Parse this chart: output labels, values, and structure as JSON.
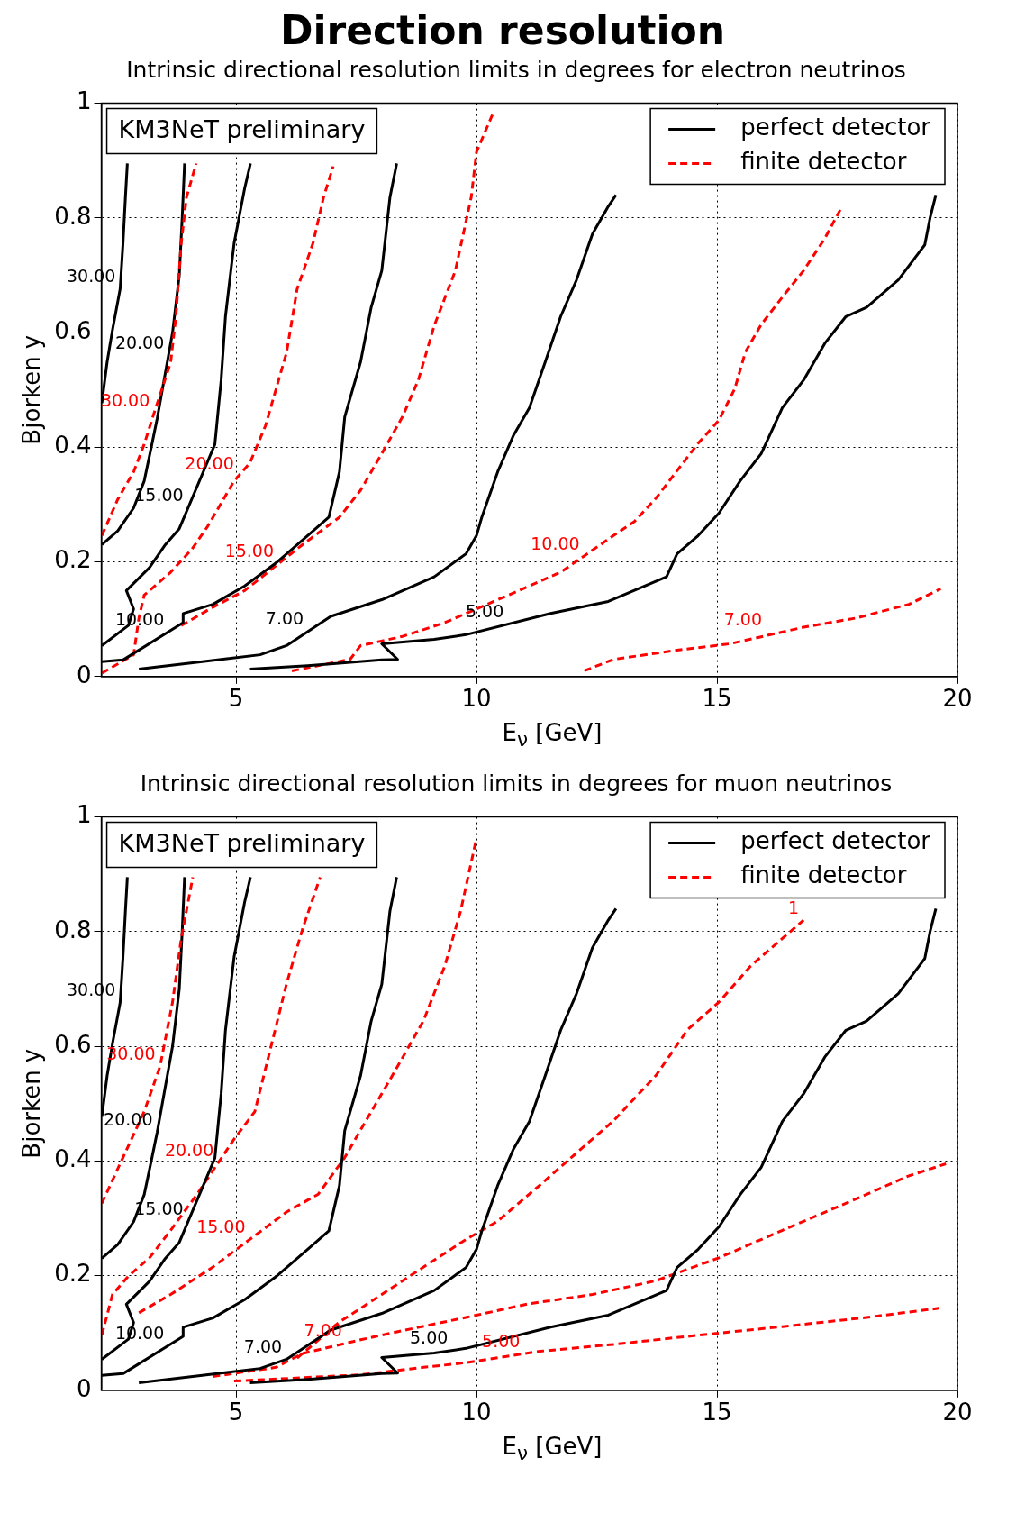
{
  "chart_data": [
    {
      "type": "line",
      "title": "Direction resolution",
      "subtitle": "Intrinsic directional resolution limits in degrees for electron neutrinos",
      "xlabel": "E$_{ν}$ [GeV]",
      "ylabel": "Bjorken y",
      "xlim": [
        2.2,
        20
      ],
      "ylim": [
        0,
        1
      ],
      "xticks": [
        5,
        10,
        15,
        20
      ],
      "yticks": [
        0,
        0.2,
        0.4,
        0.6,
        0.8,
        1
      ],
      "grid": true,
      "legend": "top right",
      "annotations": [
        "KM3NeT preliminary",
        {
          "text": "30.00",
          "x": 2.59,
          "y": 0.676
        },
        {
          "text": "20.00",
          "x": 3.6,
          "y": 0.56
        },
        {
          "text": "15.00",
          "x": 4.0,
          "y": 0.294
        },
        {
          "text": "10.00",
          "x": 3.6,
          "y": 0.078
        },
        {
          "text": "7.00",
          "x": 6.5,
          "y": 0.079
        },
        {
          "text": "5.00",
          "x": 10.66,
          "y": 0.092
        },
        {
          "text": "30.00",
          "x": 3.3,
          "y": 0.46
        },
        {
          "text": "20.00",
          "x": 5.05,
          "y": 0.35
        },
        {
          "text": "15.00",
          "x": 5.88,
          "y": 0.197
        },
        {
          "text": "10.00",
          "x": 12.24,
          "y": 0.21
        },
        {
          "text": "7.00",
          "x": 16.03,
          "y": 0.078
        }
      ],
      "series": [
        {
          "name": "perfect detector",
          "color": "#000000",
          "line_style": "solid",
          "x": [
            2.21,
            2.32,
            2.43,
            2.59,
            2.65,
            2.7,
            2.74
          ],
          "values": [
            0.477,
            0.549,
            0.604,
            0.676,
            0.756,
            0.836,
            0.895
          ]
        },
        {
          "name": "finite detector",
          "color": "#ff0000",
          "line_style": "dashed",
          "x": [
            2.21,
            2.54,
            2.87,
            3.09,
            3.27,
            3.64,
            3.75,
            3.86,
            3.97,
            4.17
          ],
          "values": [
            0.246,
            0.309,
            0.357,
            0.405,
            0.453,
            0.548,
            0.628,
            0.756,
            0.836,
            0.895
          ]
        },
        {
          "color": "#000000",
          "line_style": "solid",
          "x": [
            2.21,
            2.54,
            2.87,
            3.09,
            3.25,
            3.36,
            3.68,
            3.82,
            3.88,
            3.93
          ],
          "values": [
            0.23,
            0.254,
            0.294,
            0.341,
            0.405,
            0.45,
            0.6,
            0.7,
            0.8,
            0.895
          ]
        },
        {
          "color": "#000000",
          "line_style": "solid",
          "x": [
            2.21,
            2.76,
            2.87,
            2.72,
            3.2,
            3.53,
            3.82,
            4.56,
            4.69,
            4.78,
            4.96,
            5.18,
            5.3
          ],
          "values": [
            0.054,
            0.089,
            0.118,
            0.15,
            0.19,
            0.23,
            0.258,
            0.405,
            0.517,
            0.628,
            0.756,
            0.852,
            0.895
          ]
        },
        {
          "color": "#000000",
          "line_style": "solid",
          "x": [
            2.21,
            2.65,
            3.9,
            3.9,
            4.52,
            5.18,
            5.83,
            6.49,
            6.93,
            7.15,
            7.26,
            7.59,
            7.81,
            8.03,
            8.2,
            8.34
          ],
          "values": [
            0.026,
            0.029,
            0.094,
            0.11,
            0.126,
            0.158,
            0.198,
            0.246,
            0.278,
            0.357,
            0.453,
            0.549,
            0.644,
            0.708,
            0.836,
            0.895
          ]
        },
        {
          "color": "#000000",
          "line_style": "solid",
          "x": [
            2.98,
            4.3,
            5.5,
            6.05,
            6.97,
            8.03,
            9.12,
            9.78,
            10.0,
            10.11,
            10.44,
            10.77,
            11.1,
            11.43,
            11.75,
            12.08,
            12.41,
            12.74,
            12.9
          ],
          "values": [
            0.013,
            0.026,
            0.038,
            0.054,
            0.105,
            0.134,
            0.174,
            0.214,
            0.246,
            0.278,
            0.357,
            0.421,
            0.469,
            0.549,
            0.628,
            0.692,
            0.772,
            0.82,
            0.84
          ]
        },
        {
          "color": "#000000",
          "line_style": "solid",
          "x": [
            5.29,
            6.49,
            8.03,
            8.36,
            8.03,
            9.12,
            9.78,
            11.54,
            12.74,
            13.95,
            14.17,
            14.61,
            15.04,
            15.48,
            15.92,
            16.36,
            16.8,
            17.24,
            17.68,
            18.11,
            18.77,
            19.32,
            19.43,
            19.55
          ],
          "values": [
            0.013,
            0.019,
            0.029,
            0.03,
            0.057,
            0.065,
            0.073,
            0.11,
            0.131,
            0.174,
            0.214,
            0.246,
            0.285,
            0.341,
            0.389,
            0.469,
            0.517,
            0.581,
            0.628,
            0.644,
            0.692,
            0.753,
            0.8,
            0.84
          ]
        },
        {
          "color": "#ff0000",
          "line_style": "dashed",
          "x": [
            2.21,
            2.87,
            2.98,
            3.09,
            3.64,
            4.08,
            4.41,
            4.96,
            5.29,
            5.61,
            5.83,
            6.05,
            6.27,
            6.6,
            6.82,
            7.02
          ],
          "values": [
            0.006,
            0.038,
            0.102,
            0.142,
            0.182,
            0.222,
            0.262,
            0.341,
            0.373,
            0.437,
            0.501,
            0.565,
            0.676,
            0.756,
            0.836,
            0.89
          ]
        },
        {
          "color": "#ff0000",
          "line_style": "dashed",
          "x": [
            3.86,
            4.52,
            5.18,
            6.38,
            7.15,
            7.59,
            8.03,
            8.46,
            8.79,
            9.12,
            9.56,
            9.89,
            10.0,
            10.33
          ],
          "values": [
            0.089,
            0.121,
            0.15,
            0.23,
            0.278,
            0.325,
            0.389,
            0.453,
            0.517,
            0.612,
            0.708,
            0.836,
            0.915,
            0.98
          ]
        },
        {
          "color": "#ff0000",
          "line_style": "dashed",
          "x": [
            6.16,
            7.37,
            7.59,
            8.46,
            9.34,
            10.22,
            11.1,
            11.75,
            12.85,
            13.29,
            13.73,
            14.17,
            14.61,
            15.04,
            15.37,
            15.59,
            15.92,
            16.36,
            16.8,
            17.24,
            17.6
          ],
          "values": [
            0.01,
            0.03,
            0.054,
            0.07,
            0.094,
            0.126,
            0.158,
            0.182,
            0.246,
            0.271,
            0.311,
            0.359,
            0.407,
            0.447,
            0.502,
            0.566,
            0.614,
            0.662,
            0.708,
            0.764,
            0.82
          ]
        },
        {
          "color": "#ff0000",
          "line_style": "dashed",
          "x": [
            12.24,
            12.85,
            14.17,
            15.26,
            16.8,
            17.89,
            18.99,
            19.65
          ],
          "values": [
            0.01,
            0.03,
            0.046,
            0.057,
            0.086,
            0.102,
            0.126,
            0.153
          ]
        }
      ]
    },
    {
      "type": "line",
      "subtitle": "Intrinsic directional resolution limits in degrees for muon neutrinos",
      "xlabel": "E$_{ν}$ [GeV]",
      "ylabel": "Bjorken y",
      "xlim": [
        2.2,
        20
      ],
      "ylim": [
        0,
        1
      ],
      "xticks": [
        5,
        10,
        15,
        20
      ],
      "yticks": [
        0,
        0.2,
        0.4,
        0.6,
        0.8,
        1
      ],
      "grid": true,
      "legend": "top right",
      "annotations": [
        "KM3NeT preliminary",
        {
          "text": "30.00",
          "x": 2.59,
          "y": 0.676
        },
        {
          "text": "20.00",
          "x": 3.36,
          "y": 0.45
        },
        {
          "text": "15.00",
          "x": 4.0,
          "y": 0.294
        },
        {
          "text": "10.00",
          "x": 3.6,
          "y": 0.078
        },
        {
          "text": "7.00",
          "x": 6.05,
          "y": 0.054
        },
        {
          "text": "5.00",
          "x": 9.5,
          "y": 0.07
        },
        {
          "text": "30.00",
          "x": 3.42,
          "y": 0.565
        },
        {
          "text": "20.00",
          "x": 4.63,
          "y": 0.397
        },
        {
          "text": "15.00",
          "x": 5.29,
          "y": 0.263
        },
        {
          "text": "7.00",
          "x": 7.3,
          "y": 0.082
        },
        {
          "text": "5.00",
          "x": 11.0,
          "y": 0.064
        },
        {
          "text": "1",
          "x": 16.8,
          "y": 0.82
        }
      ],
      "series": [
        {
          "name": "perfect detector",
          "color": "#000000",
          "line_style": "solid",
          "x": [
            2.21,
            2.32,
            2.43,
            2.59,
            2.65,
            2.7,
            2.74
          ],
          "values": [
            0.477,
            0.549,
            0.604,
            0.676,
            0.756,
            0.836,
            0.895
          ]
        },
        {
          "name": "finite detector",
          "color": "#ff0000",
          "line_style": "dashed",
          "x": [
            2.21,
            2.65,
            3.09,
            3.42,
            3.68,
            3.86,
            4.04,
            4.1
          ],
          "values": [
            0.326,
            0.406,
            0.486,
            0.565,
            0.677,
            0.788,
            0.868,
            0.895
          ]
        },
        {
          "color": "#000000",
          "line_style": "solid",
          "x": [
            2.21,
            2.54,
            2.87,
            3.09,
            3.25,
            3.36,
            3.68,
            3.82,
            3.88,
            3.93
          ],
          "values": [
            0.23,
            0.254,
            0.294,
            0.341,
            0.405,
            0.45,
            0.6,
            0.7,
            0.8,
            0.895
          ]
        },
        {
          "color": "#000000",
          "line_style": "solid",
          "x": [
            2.21,
            2.76,
            2.87,
            2.72,
            3.2,
            3.53,
            3.82,
            4.56,
            4.69,
            4.78,
            4.96,
            5.18,
            5.3
          ],
          "values": [
            0.054,
            0.089,
            0.118,
            0.15,
            0.19,
            0.23,
            0.258,
            0.405,
            0.517,
            0.628,
            0.756,
            0.852,
            0.895
          ]
        },
        {
          "color": "#000000",
          "line_style": "solid",
          "x": [
            2.21,
            2.65,
            3.9,
            3.9,
            4.52,
            5.18,
            5.83,
            6.49,
            6.93,
            7.15,
            7.26,
            7.59,
            7.81,
            8.03,
            8.2,
            8.34
          ],
          "values": [
            0.026,
            0.029,
            0.094,
            0.11,
            0.126,
            0.158,
            0.198,
            0.246,
            0.278,
            0.357,
            0.453,
            0.549,
            0.644,
            0.708,
            0.836,
            0.895
          ]
        },
        {
          "color": "#000000",
          "line_style": "solid",
          "x": [
            2.98,
            4.3,
            5.5,
            6.05,
            6.97,
            8.03,
            9.12,
            9.78,
            10.0,
            10.11,
            10.44,
            10.77,
            11.1,
            11.43,
            11.75,
            12.08,
            12.41,
            12.74,
            12.9
          ],
          "values": [
            0.013,
            0.026,
            0.038,
            0.054,
            0.105,
            0.134,
            0.174,
            0.214,
            0.246,
            0.278,
            0.357,
            0.421,
            0.469,
            0.549,
            0.628,
            0.692,
            0.772,
            0.82,
            0.84
          ]
        },
        {
          "color": "#000000",
          "line_style": "solid",
          "x": [
            5.29,
            6.49,
            8.03,
            8.36,
            8.03,
            9.12,
            9.78,
            11.54,
            12.74,
            13.95,
            14.17,
            14.61,
            15.04,
            15.48,
            15.92,
            16.36,
            16.8,
            17.24,
            17.68,
            18.11,
            18.77,
            19.32,
            19.43,
            19.55
          ],
          "values": [
            0.013,
            0.019,
            0.029,
            0.03,
            0.057,
            0.065,
            0.073,
            0.11,
            0.131,
            0.174,
            0.214,
            0.246,
            0.285,
            0.341,
            0.389,
            0.469,
            0.517,
            0.581,
            0.628,
            0.644,
            0.692,
            0.753,
            0.8,
            0.84
          ]
        },
        {
          "color": "#ff0000",
          "line_style": "dashed",
          "x": [
            2.21,
            2.43,
            2.76,
            3.2,
            3.64,
            4.19,
            4.96,
            5.39,
            5.72,
            6.05,
            6.38,
            6.75
          ],
          "values": [
            0.096,
            0.167,
            0.199,
            0.231,
            0.279,
            0.342,
            0.438,
            0.486,
            0.597,
            0.709,
            0.804,
            0.895
          ]
        },
        {
          "color": "#ff0000",
          "line_style": "dashed",
          "x": [
            2.98,
            3.64,
            4.52,
            6.05,
            6.71,
            7.26,
            7.59,
            8.25,
            8.9,
            9.34,
            9.67,
            10.0
          ],
          "values": [
            0.135,
            0.167,
            0.215,
            0.311,
            0.342,
            0.406,
            0.454,
            0.549,
            0.645,
            0.74,
            0.836,
            0.963
          ]
        },
        {
          "color": "#ff0000",
          "line_style": "dashed",
          "x": [
            6.27,
            7.15,
            8.03,
            8.9,
            9.78,
            10.44,
            11.32,
            11.97,
            12.85,
            13.73,
            14.39,
            15.04,
            15.7,
            16.36,
            16.8
          ],
          "values": [
            0.056,
            0.119,
            0.167,
            0.215,
            0.263,
            0.295,
            0.358,
            0.406,
            0.47,
            0.549,
            0.629,
            0.677,
            0.74,
            0.788,
            0.82
          ]
        },
        {
          "color": "#ff0000",
          "line_style": "dashed",
          "x": [
            4.52,
            5.83,
            6.38,
            7.59,
            8.46,
            9.78,
            11.1,
            12.41,
            13.73,
            15.04,
            16.36,
            17.68,
            18.99,
            19.76
          ],
          "values": [
            0.024,
            0.04,
            0.064,
            0.088,
            0.104,
            0.127,
            0.151,
            0.167,
            0.191,
            0.231,
            0.279,
            0.326,
            0.374,
            0.395
          ]
        },
        {
          "color": "#ff0000",
          "line_style": "dashed",
          "x": [
            4.96,
            7.59,
            8.9,
            9.78,
            11.32,
            12.85,
            14.61,
            16.36,
            18.11,
            19.61
          ],
          "values": [
            0.016,
            0.027,
            0.04,
            0.048,
            0.068,
            0.08,
            0.096,
            0.111,
            0.127,
            0.143
          ]
        }
      ]
    }
  ]
}
